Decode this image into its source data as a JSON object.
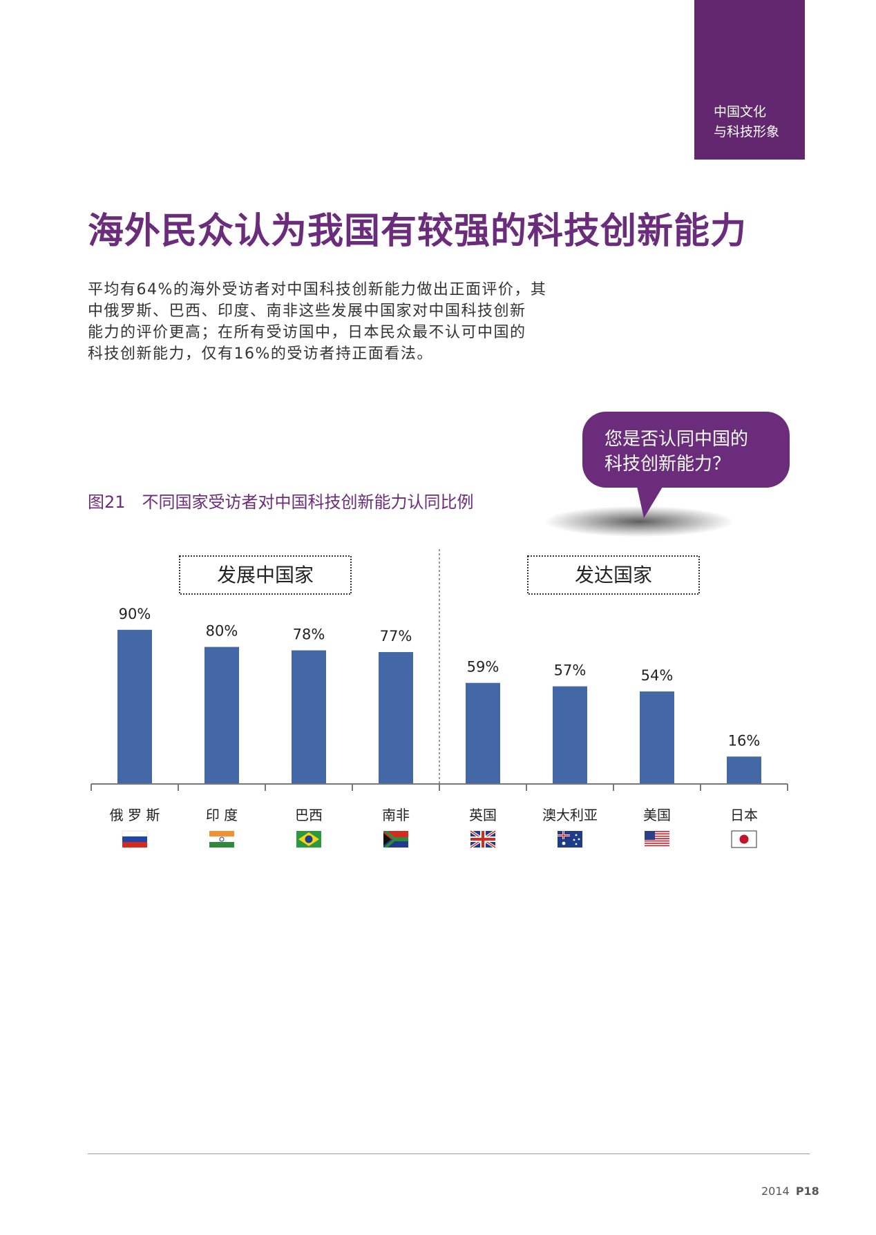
{
  "section_tab": {
    "line1": "中国文化",
    "line2": "与科技形象"
  },
  "title": "海外民众认为我国有较强的科技创新能力",
  "intro_lines": [
    "平均有64%的海外受访者对中国科技创新能力做出正面评价，其",
    "中俄罗斯、巴西、印度、南非这些发展中国家对中国科技创新",
    "能力的评价更高；在所有受访国中，日本民众最不认可中国的",
    "科技创新能力，仅有16%的受访者持正面看法。"
  ],
  "callout": {
    "line1": "您是否认同中国的",
    "line2": "科技创新能力？"
  },
  "figure_caption": "图21　不同国家受访者对中国科技创新能力认同比例",
  "chart_data": {
    "type": "bar",
    "title": "不同国家受访者对中国科技创新能力认同比例",
    "categories": [
      "俄 罗 斯",
      "印 度",
      "巴西",
      "南非",
      "英国",
      "澳大利亚",
      "美国",
      "日本"
    ],
    "values": [
      90,
      80,
      78,
      77,
      59,
      57,
      54,
      16
    ],
    "value_labels": [
      "90%",
      "80%",
      "78%",
      "77%",
      "59%",
      "57%",
      "54%",
      "16%"
    ],
    "unit": "%",
    "ylim": [
      0,
      100
    ],
    "bar_color": "#4468a6",
    "groups": [
      {
        "label": "发展中国家",
        "categories": [
          "俄 罗 斯",
          "印 度",
          "巴西",
          "南非"
        ]
      },
      {
        "label": "发达国家",
        "categories": [
          "英国",
          "澳大利亚",
          "美国",
          "日本"
        ]
      }
    ],
    "flags": [
      "russia-flag-icon",
      "india-flag-icon",
      "brazil-flag-icon",
      "south-africa-flag-icon",
      "uk-flag-icon",
      "australia-flag-icon",
      "usa-flag-icon",
      "japan-flag-icon"
    ],
    "grid": false,
    "legend": "none"
  },
  "footer": {
    "year": "2014",
    "page": "P18"
  },
  "colors": {
    "accent": "#6a2c7b",
    "tab": "#62276e",
    "bar": "#4468a6"
  }
}
